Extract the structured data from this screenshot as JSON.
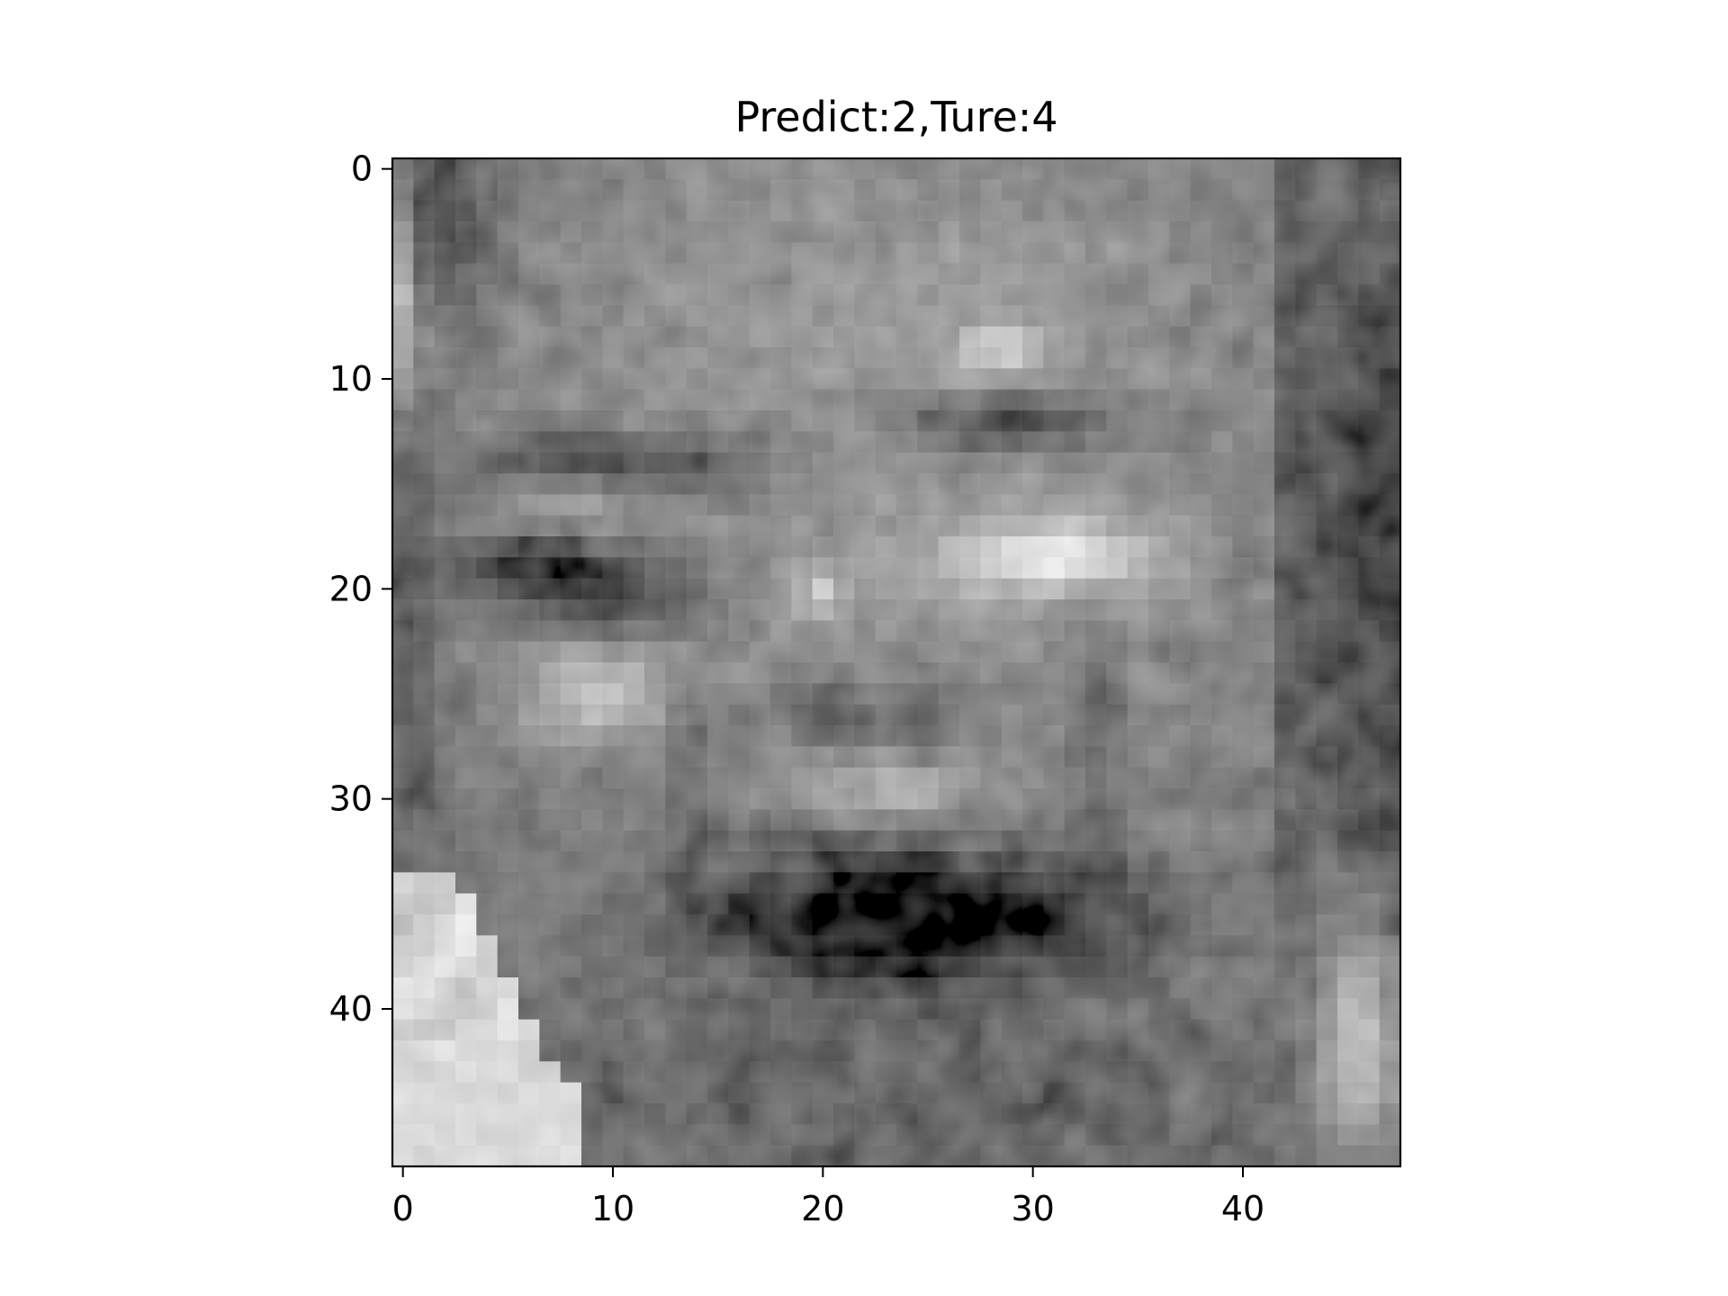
{
  "figure": {
    "title": "Predict:2,Ture:4",
    "image_description_icon": "grayscale-face-image",
    "colormap": "gray",
    "background_color": "#ffffff",
    "axis_color": "#000000"
  },
  "x_axis": {
    "range": [
      -0.5,
      47.5
    ],
    "ticks": [
      {
        "value": 0,
        "label": "0"
      },
      {
        "value": 10,
        "label": "10"
      },
      {
        "value": 20,
        "label": "20"
      },
      {
        "value": 30,
        "label": "30"
      },
      {
        "value": 40,
        "label": "40"
      }
    ]
  },
  "y_axis": {
    "range": [
      -0.5,
      47.5
    ],
    "inverted": true,
    "ticks": [
      {
        "value": 0,
        "label": "0"
      },
      {
        "value": 10,
        "label": "10"
      },
      {
        "value": 20,
        "label": "20"
      },
      {
        "value": 30,
        "label": "30"
      },
      {
        "value": 40,
        "label": "40"
      }
    ]
  }
}
